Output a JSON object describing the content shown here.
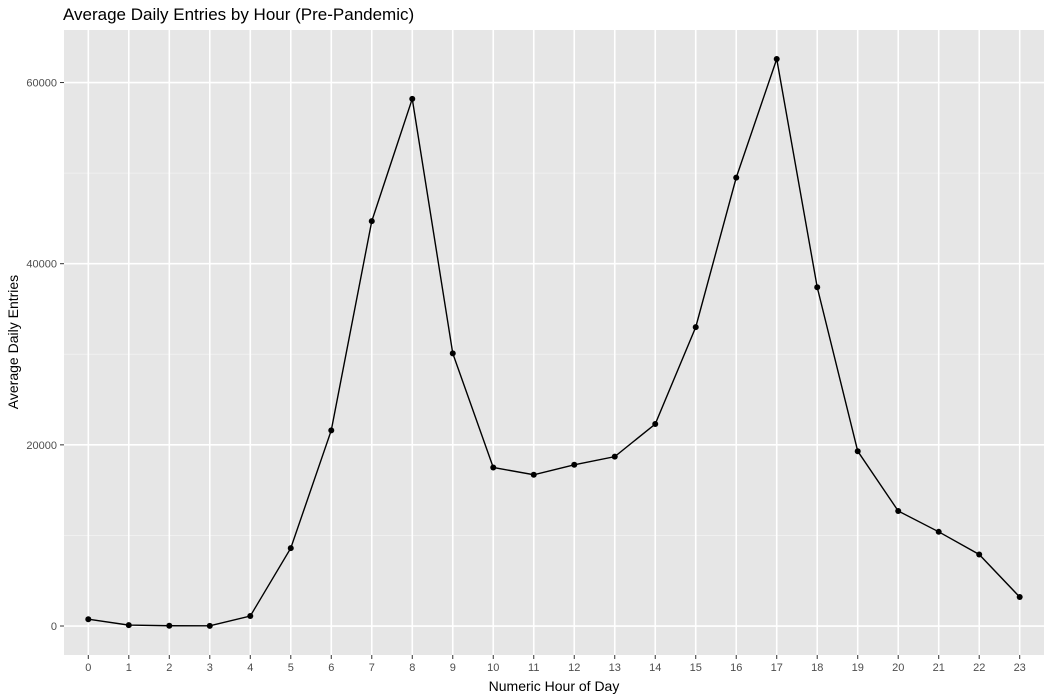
{
  "chart_data": {
    "type": "line",
    "title": "Average Daily Entries by Hour (Pre-Pandemic)",
    "xlabel": "Numeric Hour of Day",
    "ylabel": "Average Daily Entries",
    "x": [
      0,
      1,
      2,
      3,
      4,
      5,
      6,
      7,
      8,
      9,
      10,
      11,
      12,
      13,
      14,
      15,
      16,
      17,
      18,
      19,
      20,
      21,
      22,
      23
    ],
    "x_tick_labels": [
      "0",
      "1",
      "2",
      "3",
      "4",
      "5",
      "6",
      "7",
      "8",
      "9",
      "10",
      "11",
      "12",
      "13",
      "14",
      "15",
      "16",
      "17",
      "18",
      "19",
      "20",
      "21",
      "22",
      "23"
    ],
    "series": [
      {
        "values": [
          750,
          100,
          30,
          20,
          1100,
          8600,
          21600,
          44700,
          58200,
          30100,
          17500,
          16700,
          17800,
          18700,
          22300,
          33000,
          49500,
          62600,
          37400,
          19300,
          12700,
          10400,
          7900,
          3200
        ]
      }
    ],
    "xlim": [
      -0.6,
      23.6
    ],
    "ylim": [
      -3200,
      65800
    ],
    "y_ticks": [
      0,
      20000,
      40000,
      60000
    ],
    "y_tick_labels": [
      "0",
      "20000",
      "40000",
      "60000"
    ],
    "y_minor_ticks": [
      10000,
      30000,
      50000
    ],
    "grid": true,
    "colors": {
      "panel_background": "#e6e6e6",
      "grid": "#ffffff",
      "series": "#000000"
    }
  }
}
